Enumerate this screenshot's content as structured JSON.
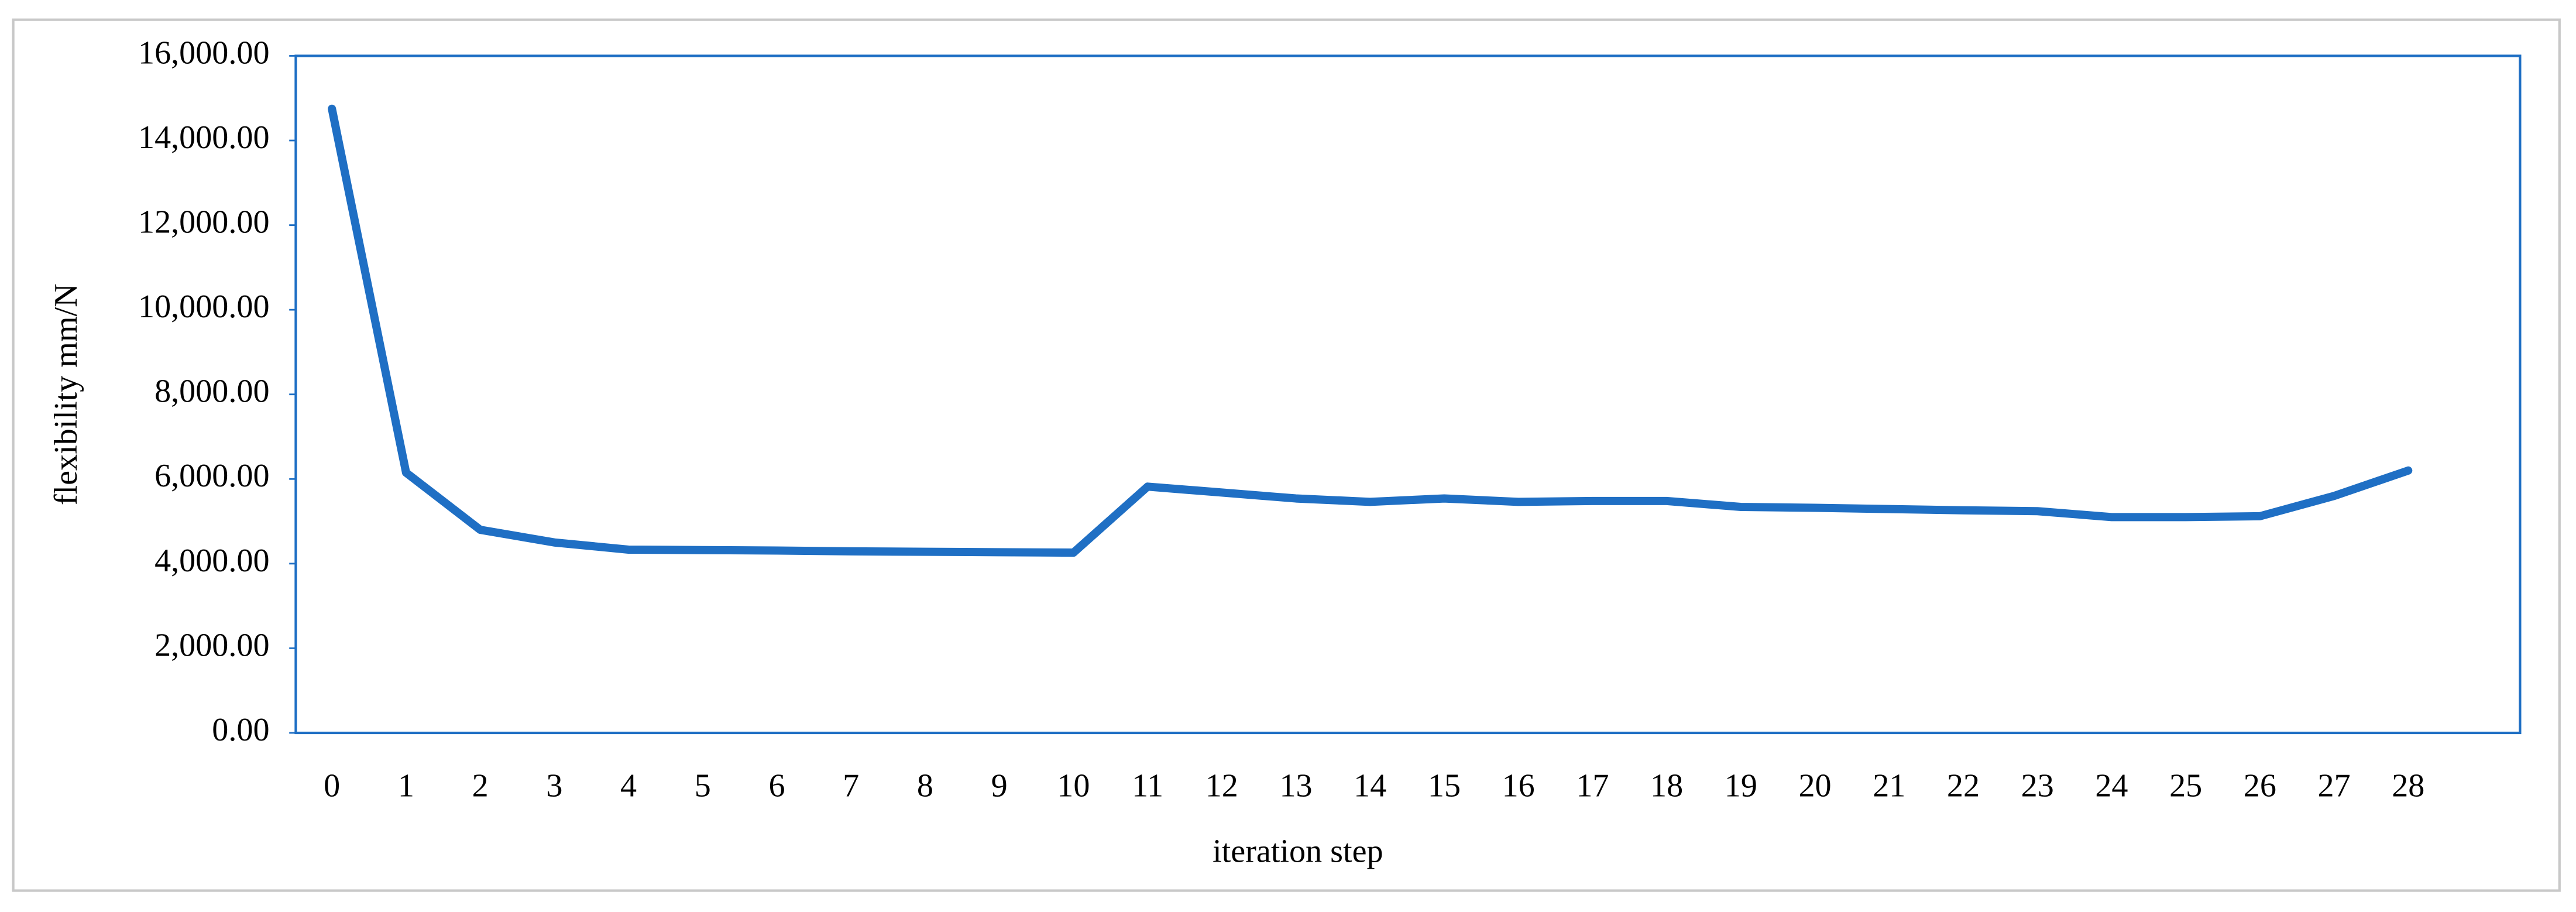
{
  "chart_data": {
    "type": "line",
    "y_label": "flexibility  mm/N",
    "x_label": "iteration step",
    "categories": [
      "0",
      "1",
      "2",
      "3",
      "4",
      "5",
      "6",
      "7",
      "8",
      "9",
      "10",
      "11",
      "12",
      "13",
      "14",
      "15",
      "16",
      "17",
      "18",
      "19",
      "20",
      "21",
      "22",
      "23",
      "24",
      "25",
      "26",
      "27",
      "28"
    ],
    "values": [
      14750,
      6150,
      4800,
      4500,
      4330,
      4320,
      4310,
      4290,
      4280,
      4270,
      4260,
      5820,
      5680,
      5540,
      5460,
      5540,
      5460,
      5480,
      5480,
      5340,
      5320,
      5290,
      5260,
      5240,
      5100,
      5100,
      5120,
      5600,
      6200
    ],
    "color": "#1f6fc4",
    "ylim": [
      0,
      16000
    ],
    "yticks": [
      {
        "value": 0,
        "label": "0.00"
      },
      {
        "value": 2000,
        "label": "2,000.00"
      },
      {
        "value": 4000,
        "label": "4,000.00"
      },
      {
        "value": 6000,
        "label": "6,000.00"
      },
      {
        "value": 8000,
        "label": "8,000.00"
      },
      {
        "value": 10000,
        "label": "10,000.00"
      },
      {
        "value": 12000,
        "label": "12,000.00"
      },
      {
        "value": 14000,
        "label": "14,000.00"
      },
      {
        "value": 16000,
        "label": "16,000.00"
      }
    ]
  }
}
